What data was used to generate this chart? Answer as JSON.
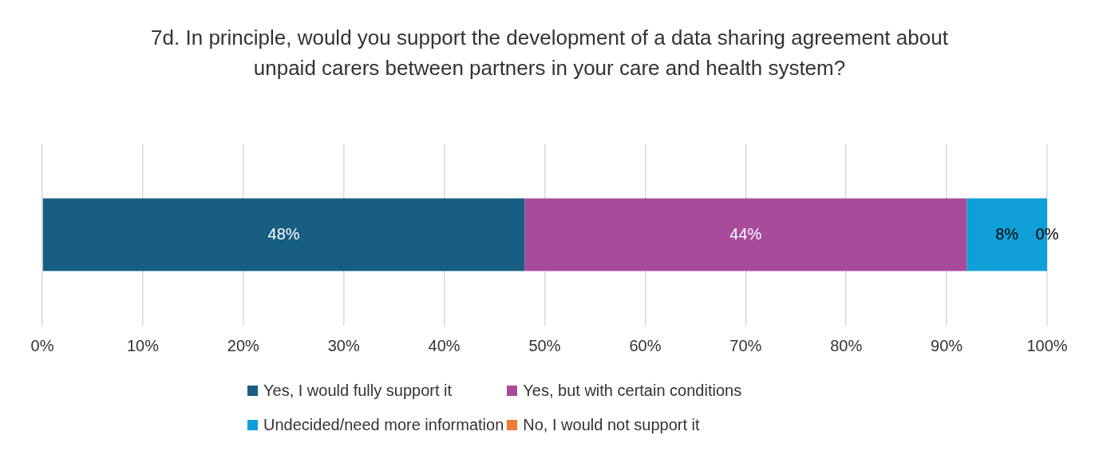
{
  "chart_data": {
    "type": "bar",
    "orientation": "horizontal",
    "stacked": true,
    "title": "7d. In principle, would you support the development of a data sharing agreement about unpaid carers between partners in your care and health system?",
    "categories": [
      null
    ],
    "series": [
      {
        "name": "Yes, I would fully support it",
        "color": "#175e82",
        "values": [
          48
        ],
        "value_labels": [
          "48%"
        ]
      },
      {
        "name": "Yes, but with certain conditions",
        "color": "#a84b9b",
        "values": [
          44
        ],
        "value_labels": [
          "44%"
        ]
      },
      {
        "name": "Undecided/need more information",
        "color": "#119fd7",
        "values": [
          8
        ],
        "value_labels": [
          "8%"
        ]
      },
      {
        "name": "No, I would not support it",
        "color": "#ef7a32",
        "values": [
          0
        ],
        "value_labels": [
          "0%"
        ]
      }
    ],
    "xlim": [
      0,
      100
    ],
    "xticks": [
      {
        "value": 0,
        "label": "0%"
      },
      {
        "value": 10,
        "label": "10%"
      },
      {
        "value": 20,
        "label": "20%"
      },
      {
        "value": 30,
        "label": "30%"
      },
      {
        "value": 40,
        "label": "40%"
      },
      {
        "value": 50,
        "label": "50%"
      },
      {
        "value": 60,
        "label": "60%"
      },
      {
        "value": 70,
        "label": "70%"
      },
      {
        "value": 80,
        "label": "80%"
      },
      {
        "value": 90,
        "label": "90%"
      },
      {
        "value": 100,
        "label": "100%"
      }
    ],
    "grid": "x",
    "legend": "bottom"
  }
}
